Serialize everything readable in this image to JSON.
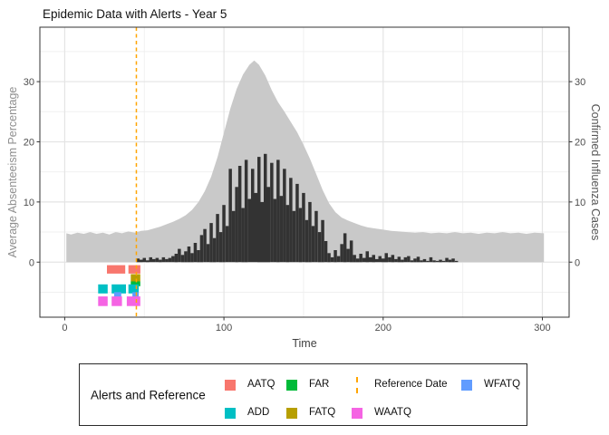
{
  "title": "Epidemic Data with Alerts - Year 5",
  "axes": {
    "left": {
      "title": "Average Absenteeism Percentage",
      "tick_labels": [
        "0",
        "10",
        "20",
        "30"
      ]
    },
    "right": {
      "title": "Confirmed Influenza Cases",
      "tick_labels": [
        "0",
        "10",
        "20",
        "30"
      ]
    },
    "bottom": {
      "title": "Time",
      "tick_labels": [
        "0",
        "100",
        "200",
        "300"
      ]
    }
  },
  "legend": {
    "title": "Alerts and Reference",
    "entries": [
      {
        "label": "AATQ",
        "key": "square",
        "color": "#F8766D",
        "col": 0,
        "row": 0
      },
      {
        "label": "ADD",
        "key": "square",
        "color": "#00BFC4",
        "col": 0,
        "row": 1
      },
      {
        "label": "FAR",
        "key": "square",
        "color": "#00BA38",
        "col": 1,
        "row": 0
      },
      {
        "label": "FATQ",
        "key": "square",
        "color": "#B79F00",
        "col": 1,
        "row": 1
      },
      {
        "label": "Reference Date",
        "key": "dashed-vline",
        "color": "#FFA500",
        "col": 2,
        "row": 0
      },
      {
        "label": "WAATQ",
        "key": "square",
        "color": "#F564E3",
        "col": 2,
        "row": 1
      },
      {
        "label": "WFATQ",
        "key": "square",
        "color": "#619CFF",
        "col": 3,
        "row": 0
      }
    ]
  },
  "chart_data": {
    "type": "area+bar",
    "title": "Epidemic Data with Alerts - Year 5",
    "xlabel": "Time",
    "ylabel_left": "Average Absenteeism Percentage",
    "ylabel_right": "Confirmed Influenza Cases",
    "xlim": [
      -15.6,
      316.8
    ],
    "ylim": [
      -9.15,
      39.05
    ],
    "x_major_ticks": [
      0,
      100,
      200,
      300
    ],
    "x_minor_ticks": [
      50,
      150,
      250
    ],
    "y_major_ticks": [
      0,
      10,
      20,
      30
    ],
    "y_minor_ticks": [
      -5,
      5,
      15,
      25,
      35
    ],
    "grid": true,
    "colors": {
      "area_fill": "#c9c9c9",
      "bar_fill": "#333333",
      "panel_border": "#333333",
      "grid_major": "#e4e4e4",
      "grid_minor": "#f0f0f0",
      "tick_mark": "#333333",
      "tick_label": "#4d4d4d",
      "reference": "#FFA500"
    },
    "reference_line": {
      "label": "Reference Date",
      "x": 45,
      "color": "#FFA500",
      "style": "dashed"
    },
    "series": [
      {
        "name": "Average Absenteeism Percentage",
        "type": "area",
        "axis": "left",
        "color": "#c9c9c9",
        "x": [
          1,
          4,
          8,
          12,
          16,
          20,
          24,
          28,
          32,
          36,
          40,
          44,
          48,
          52,
          56,
          60,
          64,
          68,
          72,
          76,
          80,
          84,
          88,
          92,
          96,
          100,
          104,
          108,
          112,
          116,
          119,
          122,
          126,
          130,
          134,
          138,
          142,
          146,
          150,
          154,
          158,
          162,
          166,
          170,
          174,
          178,
          182,
          186,
          190,
          195,
          200,
          205,
          210,
          215,
          220,
          225,
          230,
          235,
          240,
          245,
          250,
          255,
          260,
          265,
          270,
          275,
          280,
          285,
          290,
          295,
          301
        ],
        "values": [
          4.8,
          4.6,
          4.9,
          4.7,
          5.0,
          4.7,
          4.9,
          4.6,
          5.0,
          4.8,
          5.1,
          4.9,
          5.2,
          5.3,
          5.6,
          5.9,
          6.3,
          6.7,
          7.2,
          7.8,
          8.7,
          10.0,
          11.8,
          14.2,
          17.5,
          21.5,
          25.5,
          28.8,
          31.2,
          32.8,
          33.5,
          32.8,
          31.0,
          28.6,
          26.6,
          25.0,
          23.3,
          21.6,
          19.5,
          17.2,
          14.6,
          12.0,
          9.8,
          8.3,
          7.4,
          6.9,
          6.5,
          6.1,
          5.8,
          5.6,
          5.4,
          5.2,
          5.1,
          5.0,
          4.9,
          5.0,
          4.8,
          4.9,
          4.8,
          5.0,
          4.8,
          4.9,
          4.7,
          4.9,
          4.8,
          5.0,
          4.8,
          4.9,
          4.7,
          4.9,
          4.8
        ]
      },
      {
        "name": "Confirmed Influenza Cases",
        "type": "bar",
        "axis": "right",
        "color": "#333333",
        "bar_width_days": 2,
        "x": [
          46,
          48,
          50,
          52,
          54,
          56,
          58,
          60,
          62,
          64,
          66,
          68,
          70,
          72,
          74,
          76,
          78,
          80,
          82,
          84,
          86,
          88,
          90,
          92,
          94,
          96,
          98,
          100,
          102,
          104,
          106,
          108,
          110,
          112,
          114,
          116,
          118,
          120,
          122,
          124,
          126,
          128,
          130,
          132,
          134,
          136,
          138,
          140,
          142,
          144,
          146,
          148,
          150,
          152,
          154,
          156,
          158,
          160,
          162,
          164,
          166,
          168,
          170,
          172,
          174,
          176,
          178,
          180,
          182,
          184,
          186,
          188,
          190,
          192,
          194,
          196,
          198,
          200,
          202,
          204,
          206,
          208,
          210,
          212,
          214,
          216,
          218,
          220,
          222,
          224,
          226,
          228,
          230,
          232,
          234,
          236,
          238,
          240,
          242,
          244,
          246
        ],
        "values": [
          0.6,
          0.4,
          0.7,
          0.3,
          0.8,
          0.5,
          0.7,
          0.4,
          0.8,
          0.5,
          0.7,
          1.0,
          1.4,
          2.2,
          1.2,
          1.8,
          2.6,
          1.5,
          3.2,
          2.0,
          4.5,
          5.5,
          3.0,
          6.5,
          4.0,
          8.0,
          5.0,
          9.5,
          6.0,
          15.5,
          8.5,
          12.5,
          16.0,
          9.0,
          17.0,
          10.5,
          15.5,
          11.5,
          17.5,
          10.0,
          18.0,
          12.5,
          16.5,
          10.5,
          17.0,
          11.0,
          15.5,
          9.5,
          14.0,
          8.5,
          13.0,
          9.0,
          11.5,
          7.0,
          10.0,
          6.0,
          8.5,
          5.0,
          7.0,
          3.5,
          1.5,
          0.8,
          2.0,
          1.0,
          3.0,
          4.8,
          2.2,
          3.6,
          1.2,
          0.6,
          1.4,
          0.7,
          1.8,
          0.8,
          1.2,
          0.5,
          1.0,
          0.6,
          1.5,
          0.8,
          1.2,
          0.5,
          0.9,
          0.4,
          0.8,
          1.0,
          0.3,
          0.6,
          0.9,
          0.3,
          0.5,
          0.2,
          0.8,
          0.3,
          0.2,
          0.4,
          0.2,
          0.7,
          0.4,
          0.6,
          0.2
        ]
      }
    ],
    "alerts": [
      {
        "name": "AATQ",
        "color": "#F8766D",
        "y_band": [
          -0.5,
          -1.9
        ],
        "segments": [
          [
            26.5,
            38
          ],
          [
            40,
            47.5
          ]
        ]
      },
      {
        "name": "FATQ",
        "color": "#B79F00",
        "y_band": [
          -2.0,
          -3.2
        ],
        "segments": [
          [
            41.5,
            47.5
          ]
        ]
      },
      {
        "name": "FAR",
        "color": "#00BA38",
        "y_band": [
          -3.2,
          -4.0
        ],
        "segments": [
          [
            41.5,
            47.5
          ]
        ]
      },
      {
        "name": "ADD",
        "color": "#00BFC4",
        "y_band": [
          -3.7,
          -5.2
        ],
        "segments": [
          [
            21,
            27
          ],
          [
            29.5,
            38.5
          ],
          [
            40,
            46.5
          ]
        ]
      },
      {
        "name": "WFATQ",
        "color": "#619CFF",
        "y_band": [
          -5.0,
          -6.4
        ],
        "segments": [
          [
            31,
            35.5
          ],
          [
            42.5,
            46.5
          ]
        ]
      },
      {
        "name": "WAATQ",
        "color": "#F564E3",
        "y_band": [
          -5.7,
          -7.3
        ],
        "segments": [
          [
            21,
            27
          ],
          [
            29.5,
            36
          ],
          [
            39,
            47.5
          ]
        ]
      }
    ]
  }
}
